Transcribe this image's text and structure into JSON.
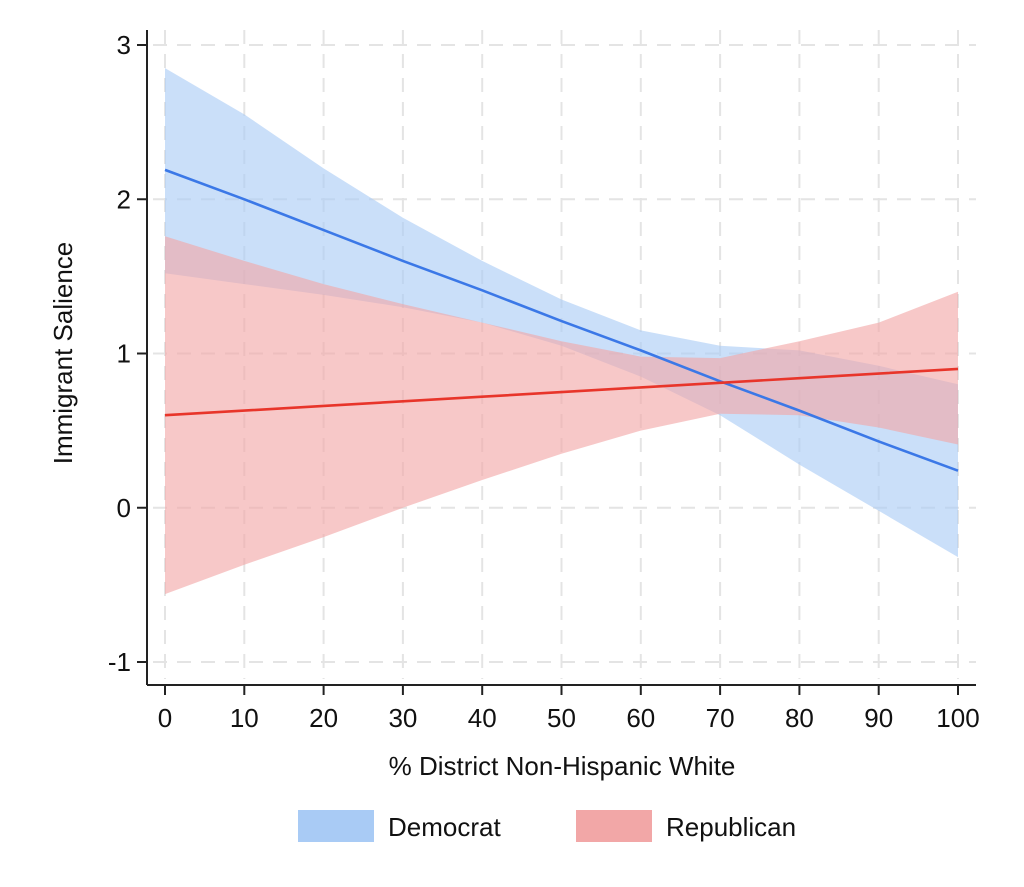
{
  "chart_data": {
    "type": "line",
    "title": "",
    "xlabel": "% District Non-Hispanic White",
    "ylabel": "Immigrant Salience",
    "xlim": [
      0,
      100
    ],
    "ylim": [
      -1,
      3
    ],
    "x_ticks": [
      0,
      10,
      20,
      30,
      40,
      50,
      60,
      70,
      80,
      90,
      100
    ],
    "y_ticks": [
      -1,
      0,
      1,
      2,
      3
    ],
    "grid": true,
    "legend_position": "bottom",
    "series": [
      {
        "name": "Democrat",
        "color": "#3b78e7",
        "band_color": "#a9cbf5",
        "x": [
          0,
          10,
          20,
          30,
          40,
          50,
          60,
          70,
          80,
          90,
          100
        ],
        "y": [
          2.19,
          2.0,
          1.8,
          1.6,
          1.41,
          1.21,
          1.02,
          0.82,
          0.63,
          0.43,
          0.24
        ],
        "upper": [
          2.85,
          2.55,
          2.2,
          1.88,
          1.6,
          1.35,
          1.15,
          1.05,
          1.02,
          0.92,
          0.8
        ],
        "lower": [
          1.52,
          1.45,
          1.38,
          1.3,
          1.2,
          1.05,
          0.85,
          0.6,
          0.28,
          -0.02,
          -0.32
        ]
      },
      {
        "name": "Republican",
        "color": "#e8352a",
        "band_color": "#f2a7a7",
        "x": [
          0,
          10,
          20,
          30,
          40,
          50,
          60,
          70,
          80,
          90,
          100
        ],
        "y": [
          0.6,
          0.63,
          0.66,
          0.69,
          0.72,
          0.75,
          0.78,
          0.81,
          0.84,
          0.87,
          0.9
        ],
        "upper": [
          1.76,
          1.6,
          1.45,
          1.32,
          1.2,
          1.08,
          0.98,
          0.97,
          1.08,
          1.2,
          1.4
        ],
        "lower": [
          -0.56,
          -0.37,
          -0.19,
          0.0,
          0.18,
          0.35,
          0.5,
          0.61,
          0.6,
          0.52,
          0.41
        ]
      }
    ]
  }
}
